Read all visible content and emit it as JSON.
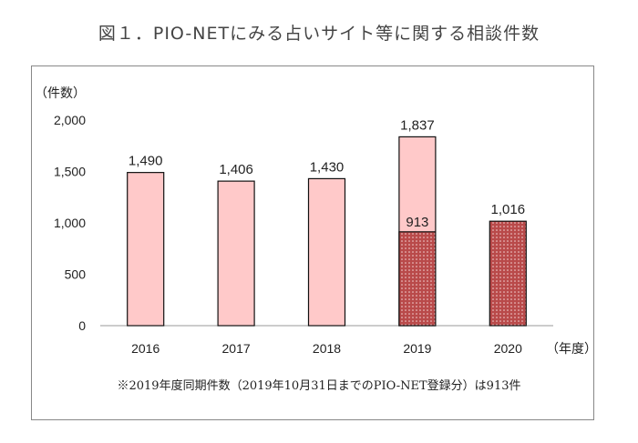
{
  "title": "図１．PIO-NETにみる占いサイト等に関する相談件数",
  "note": "※2019年度同期件数（2019年10月31日までのPIO-NET登録分）は913件",
  "colors": {
    "bar_fill": "#ffc9c9",
    "bar_stroke": "#111111",
    "hatch_bg": "#b94a4a",
    "hatch_dot": "#f4d4d4",
    "axis": "#999999"
  },
  "chart_data": {
    "type": "bar",
    "ylabel": "（件数）",
    "xlabel": "（年度）",
    "categories": [
      "2016",
      "2017",
      "2018",
      "2019",
      "2020"
    ],
    "series": [
      {
        "values": [
          1490,
          1406,
          1430,
          1837,
          null
        ],
        "style": "solid-pink"
      },
      {
        "values": [
          null,
          null,
          null,
          913,
          1016
        ],
        "style": "dotted-red"
      }
    ],
    "data_labels": [
      "1,490",
      "1,406",
      "1,430",
      "1,837",
      "913",
      "1,016"
    ],
    "yticks": [
      0,
      500,
      1000,
      1500,
      2000
    ],
    "ytick_labels": [
      "0",
      "500",
      "1,000",
      "1,500",
      "2,000"
    ],
    "ylim": [
      0,
      2000
    ],
    "grid": false,
    "legend": "none"
  }
}
